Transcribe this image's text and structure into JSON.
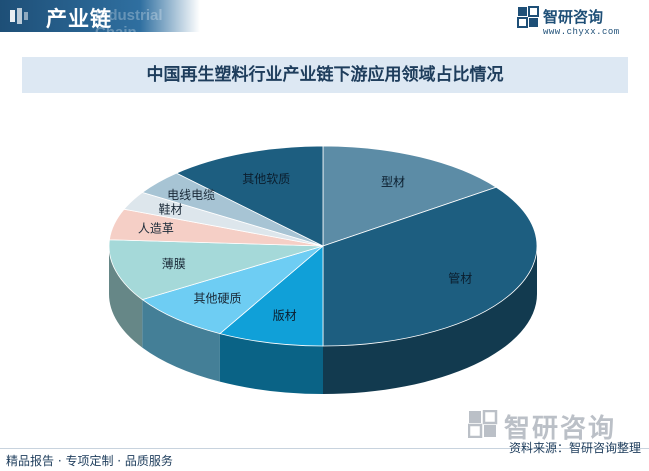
{
  "header": {
    "section_label": "产业链",
    "watermark_text": "Industrial Chain"
  },
  "logo": {
    "name": "智研咨询",
    "url": "www.chyxx.com"
  },
  "chart_data": {
    "type": "pie",
    "style": "3d",
    "title": "中国再生塑料行业产业链下游应用领域占比情况",
    "slices": [
      {
        "label": "型材",
        "value": 15,
        "color": "#5c8ca6"
      },
      {
        "label": "管材",
        "value": 35,
        "color": "#1d5e80"
      },
      {
        "label": "版材",
        "value": 8,
        "color": "#10a0d8"
      },
      {
        "label": "其他硬质",
        "value": 8,
        "color": "#6ecdf3"
      },
      {
        "label": "薄膜",
        "value": 10,
        "color": "#a5d9d9"
      },
      {
        "label": "人造革",
        "value": 5,
        "color": "#f5cfc6"
      },
      {
        "label": "鞋材",
        "value": 3,
        "color": "#dde6ec"
      },
      {
        "label": "电线电缆",
        "value": 4,
        "color": "#a7c4d4"
      },
      {
        "label": "其他软质",
        "value": 12,
        "color": "#1d5e80"
      }
    ],
    "legend": "none"
  },
  "footer": {
    "left_text": "精品报告 · 专项定制 · 品质服务",
    "source_text": "资料来源：智研咨询整理"
  },
  "watermark": {
    "text": "智研咨询"
  }
}
